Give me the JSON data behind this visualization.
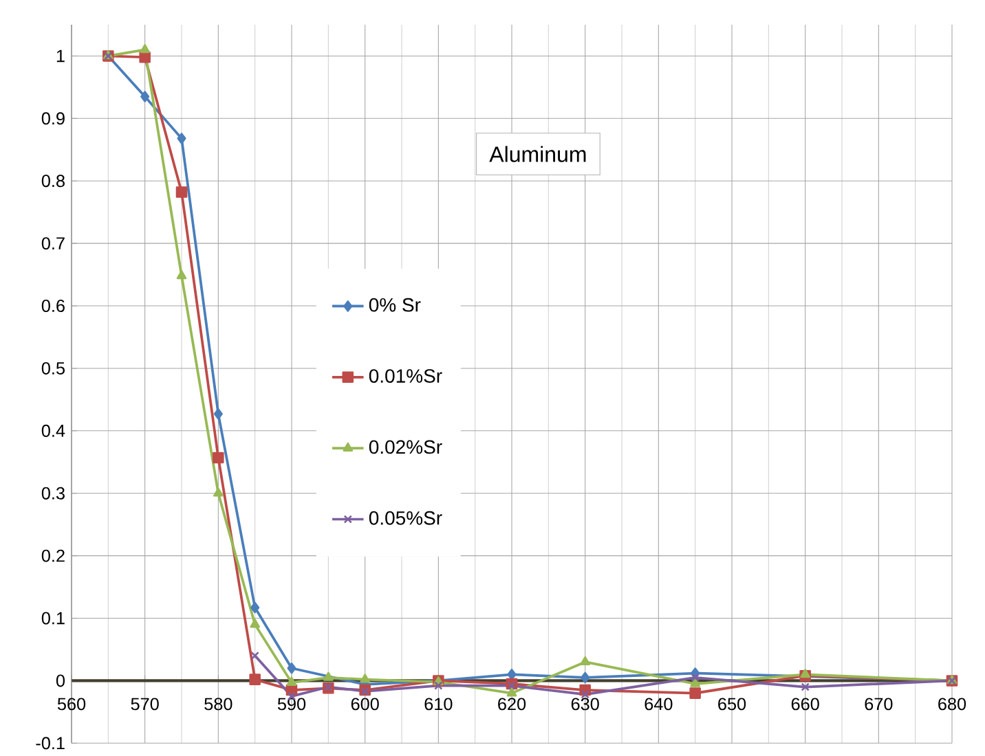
{
  "chart_data": {
    "type": "line",
    "title": "Aluminum",
    "x": [
      565,
      570,
      575,
      580,
      585,
      590,
      595,
      600,
      610,
      620,
      630,
      645,
      660,
      680
    ],
    "series": [
      {
        "name": "0% Sr",
        "color": "#4a7ebb",
        "marker": "diamond",
        "x": [
          565,
          570,
          575,
          580,
          585,
          590,
          600,
          610,
          620,
          630,
          645,
          680
        ],
        "values": [
          1.0,
          0.935,
          0.868,
          0.427,
          0.117,
          0.02,
          -0.006,
          0.0,
          0.01,
          0.005,
          0.012,
          0.0
        ]
      },
      {
        "name": "0.01%Sr",
        "color": "#be4b48",
        "marker": "square",
        "values": [
          1.0,
          0.998,
          0.782,
          0.357,
          0.002,
          -0.015,
          -0.012,
          -0.015,
          0.0,
          -0.005,
          -0.015,
          -0.02,
          0.008,
          0.0
        ]
      },
      {
        "name": "0.02%Sr",
        "color": "#98b954",
        "marker": "triangle",
        "values": [
          1.0,
          1.01,
          0.648,
          0.3,
          0.09,
          -0.003,
          0.005,
          0.002,
          -0.002,
          -0.02,
          0.03,
          -0.005,
          0.01,
          0.0
        ]
      },
      {
        "name": "0.05%Sr",
        "color": "#7d60a0",
        "marker": "cross",
        "values": [
          1.0,
          null,
          null,
          null,
          0.04,
          -0.025,
          -0.01,
          -0.017,
          -0.008,
          -0.008,
          -0.022,
          0.005,
          -0.01,
          0.0
        ]
      }
    ],
    "xlim": [
      560,
      680
    ],
    "xticks": [
      560,
      570,
      580,
      590,
      600,
      610,
      620,
      630,
      640,
      650,
      660,
      670,
      680
    ],
    "ylim": [
      -0.1,
      1.05
    ],
    "yticks": [
      -0.1,
      0,
      0.1,
      0.2,
      0.3,
      0.4,
      0.5,
      0.6,
      0.7,
      0.8,
      0.9,
      1
    ],
    "grid": true,
    "legend": "center",
    "line_style": "solid"
  }
}
